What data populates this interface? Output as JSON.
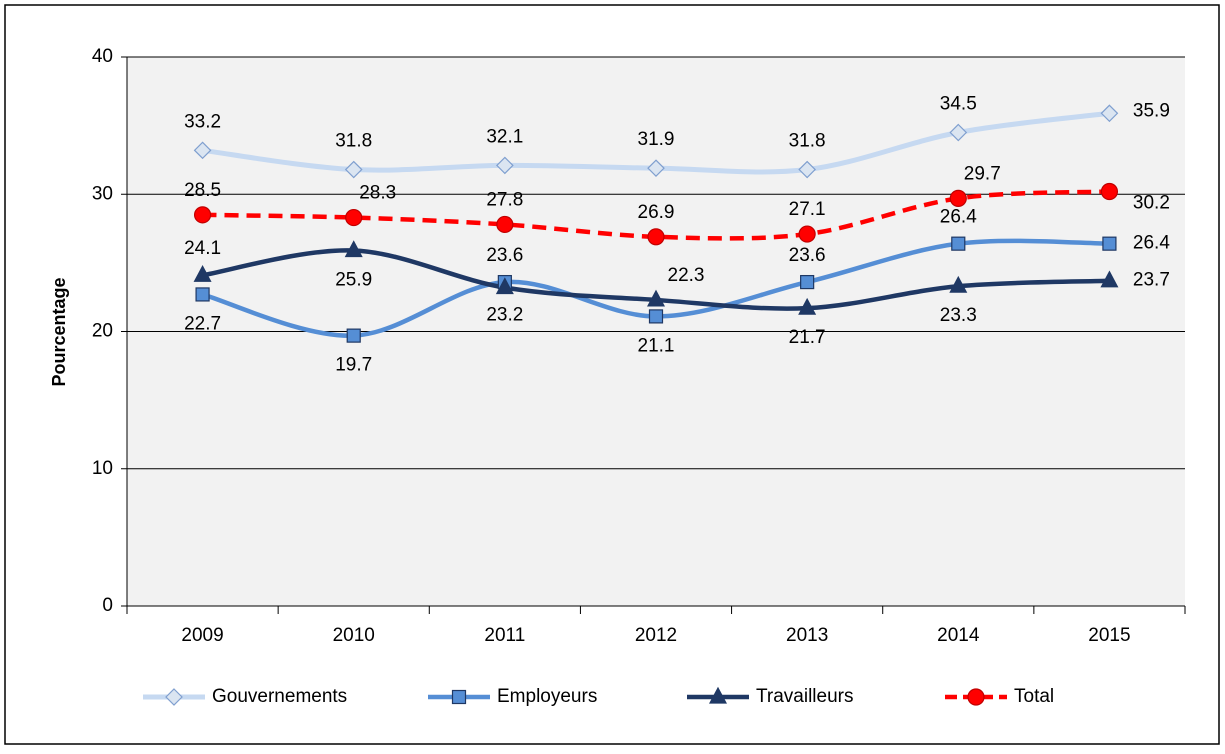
{
  "chart_data": {
    "type": "line",
    "y_label": "Pourcentage",
    "categories": [
      "2009",
      "2010",
      "2011",
      "2012",
      "2013",
      "2014",
      "2015"
    ],
    "series": [
      {
        "name": "Gouvernements",
        "color": "#c6d9f1",
        "marker": "diamond",
        "values": [
          33.2,
          31.8,
          32.1,
          31.9,
          31.8,
          34.5,
          35.9
        ]
      },
      {
        "name": "Employeurs",
        "color": "#558ed5",
        "marker": "square",
        "values": [
          22.7,
          19.7,
          23.6,
          21.1,
          23.6,
          26.4,
          26.4
        ]
      },
      {
        "name": "Travailleurs",
        "color": "#1f3864",
        "marker": "triangle",
        "values": [
          24.1,
          25.9,
          23.2,
          22.3,
          21.7,
          23.3,
          23.7
        ]
      },
      {
        "name": "Total",
        "color": "#ff0000",
        "marker": "circle",
        "dashed": true,
        "values": [
          28.5,
          28.3,
          27.8,
          26.9,
          27.1,
          29.7,
          30.2
        ]
      }
    ],
    "ylim": [
      0,
      40
    ],
    "yticks": [
      0,
      10,
      20,
      30,
      40
    ],
    "grid": true,
    "legend": "bottom"
  }
}
